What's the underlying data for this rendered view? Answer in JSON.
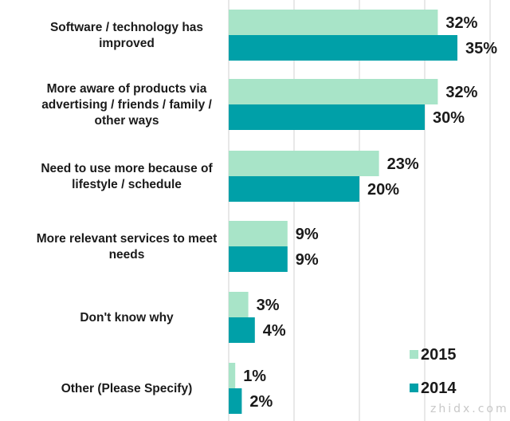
{
  "chart_data": {
    "type": "bar",
    "orientation": "horizontal",
    "title": "",
    "xlabel": "",
    "ylabel": "",
    "xlim": [
      0,
      40
    ],
    "grid": true,
    "gridlines": [
      0,
      10,
      20,
      30,
      40
    ],
    "categories": [
      [
        "Software / technology has",
        "improved"
      ],
      [
        "More aware of products via",
        "advertising / friends / family /",
        "other ways"
      ],
      [
        "Need to use more because of",
        "lifestyle / schedule"
      ],
      [
        "More relevant services to meet",
        "needs"
      ],
      [
        "Don't know why"
      ],
      [
        "Other (Please Specify)"
      ]
    ],
    "series": [
      {
        "name": "2015",
        "color": "#a8e4c8",
        "values": [
          32,
          32,
          23,
          9,
          3,
          1
        ],
        "labels": [
          "32%",
          "32%",
          "23%",
          "9%",
          "3%",
          "1%"
        ]
      },
      {
        "name": "2014",
        "color": "#00a0a8",
        "values": [
          35,
          30,
          20,
          9,
          4,
          2
        ],
        "labels": [
          "35%",
          "30%",
          "20%",
          "9%",
          "4%",
          "2%"
        ]
      }
    ],
    "legend": {
      "placement": "bottom-right",
      "entries": [
        "2015",
        "2014"
      ]
    }
  },
  "watermark": {
    "text": "zhidx.com"
  }
}
